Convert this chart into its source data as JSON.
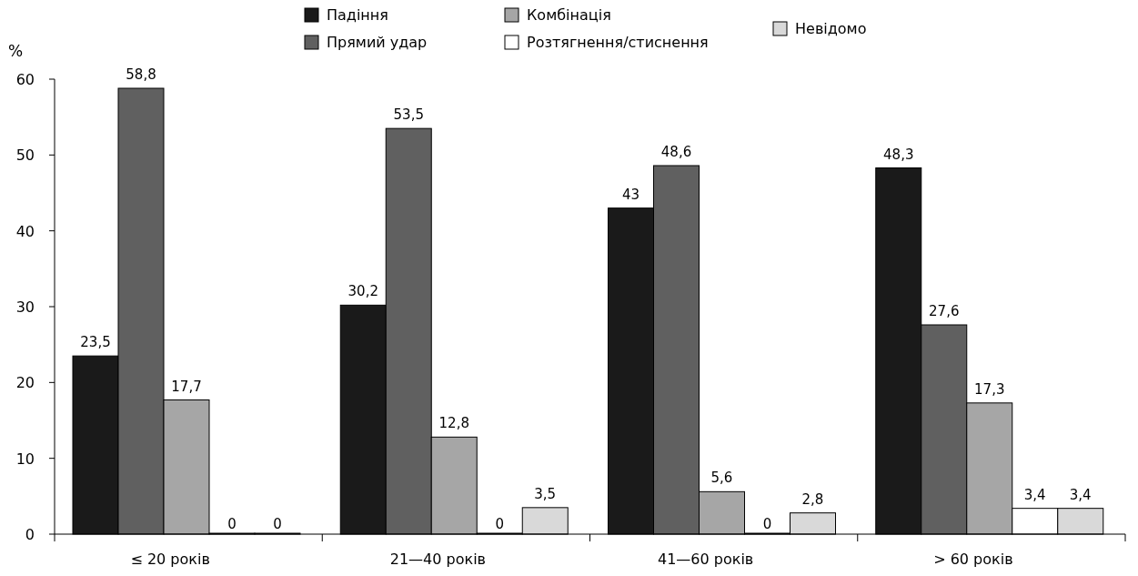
{
  "chart_data": {
    "type": "bar",
    "ylabel": "%",
    "categories": [
      "≤ 20 років",
      "21—40 років",
      "41—60 років",
      "> 60 років"
    ],
    "series": [
      {
        "name": "Падіння",
        "color": "#1a1a1a",
        "values": [
          23.5,
          30.2,
          43,
          48.3
        ],
        "value_labels": [
          "23,5",
          "30,2",
          "43",
          "48,3"
        ]
      },
      {
        "name": "Прямий удар",
        "color": "#606060",
        "values": [
          58.8,
          53.5,
          48.6,
          27.6
        ],
        "value_labels": [
          "58,8",
          "53,5",
          "48,6",
          "27,6"
        ]
      },
      {
        "name": "Комбінація",
        "color": "#a6a6a6",
        "values": [
          17.7,
          12.8,
          5.6,
          17.3
        ],
        "value_labels": [
          "17,7",
          "12,8",
          "5,6",
          "17,3"
        ]
      },
      {
        "name": "Розтягнення/стиснення",
        "color": "#ffffff",
        "values": [
          0,
          0,
          0,
          3.4
        ],
        "value_labels": [
          "0",
          "0",
          "0",
          "3,4"
        ]
      },
      {
        "name": "Невідомо",
        "color": "#d9d9d9",
        "values": [
          0,
          3.5,
          2.8,
          3.4
        ],
        "value_labels": [
          "0",
          "3,5",
          "2,8",
          "3,4"
        ]
      }
    ],
    "ylim": [
      0,
      60
    ],
    "yticks": [
      0,
      10,
      20,
      30,
      40,
      50,
      60
    ],
    "grid": false,
    "legend": "top"
  }
}
